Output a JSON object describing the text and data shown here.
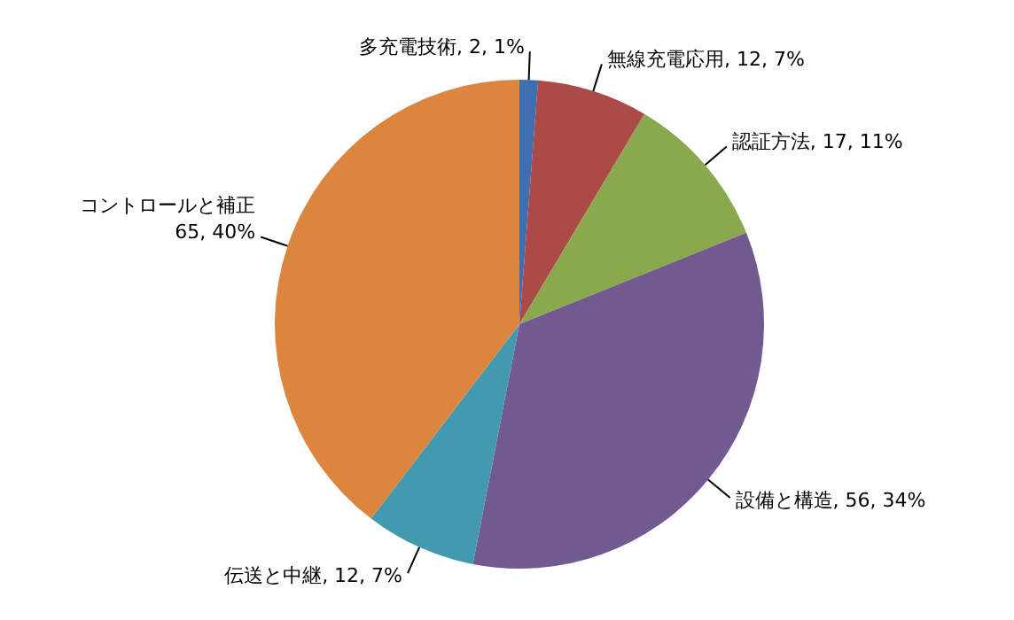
{
  "chart_data": {
    "type": "pie",
    "categories": [
      "多充電技術",
      "無線充電応用",
      "認証方法",
      "設備と構造",
      "伝送と中継",
      "コントロールと補正"
    ],
    "values": [
      2,
      12,
      17,
      56,
      12,
      65
    ],
    "value_labels": [
      "2, 1%",
      "12, 7%",
      "17, 11%",
      "56, 34%",
      "12, 7%",
      "65, 40%"
    ],
    "colors": [
      "#3f6fb0",
      "#ab4a47",
      "#8aa94f",
      "#72598f",
      "#4299b0",
      "#dc853e"
    ],
    "legend": false
  }
}
